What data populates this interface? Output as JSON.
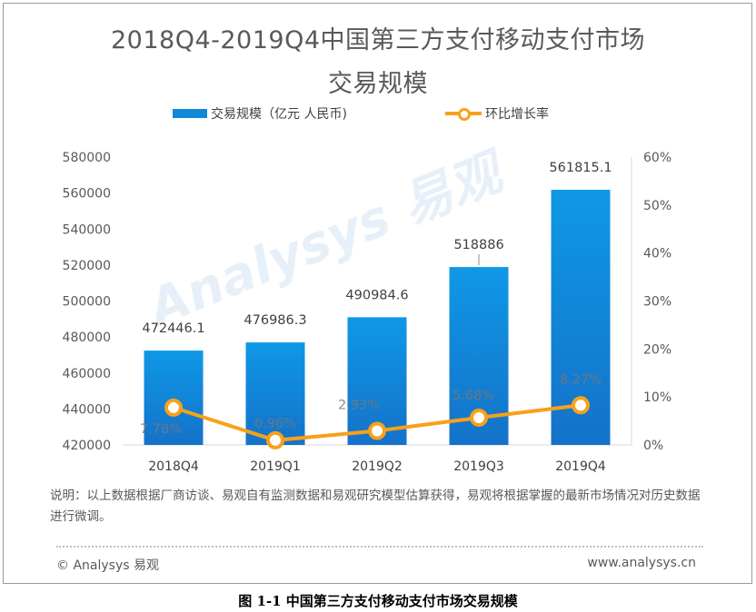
{
  "title_line1": "2018Q4-2019Q4中国第三方支付移动支付市场",
  "title_line2": "交易规模",
  "watermark": "Analysys 易观",
  "note": "说明：以上数据根据厂商访谈、易观自有监测数据和易观研究模型估算获得，易观将根据掌握的最新市场情况对历史数据进行微调。",
  "copyright": "© Analysys 易观",
  "website": "www.analysys.cn",
  "caption": "图 1-1  中国第三方支付移动支付市场交易规模",
  "colors": {
    "bar": "#1188d8",
    "line": "#f7a11a"
  },
  "chart_data": {
    "type": "bar",
    "categories": [
      "2018Q4",
      "2019Q1",
      "2019Q2",
      "2019Q3",
      "2019Q4"
    ],
    "series": [
      {
        "name": "交易规模（亿元 人民币)",
        "type": "bar",
        "axis": "left",
        "values": [
          472446.1,
          476986.3,
          490984.6,
          518886,
          561815.1
        ],
        "labels": [
          "472446.1",
          "476986.3",
          "490984.6",
          "518886",
          "561815.1"
        ]
      },
      {
        "name": "环比增长率",
        "type": "line",
        "axis": "right",
        "values": [
          7.78,
          0.96,
          2.93,
          5.68,
          8.27
        ],
        "labels": [
          "7.78%",
          "0.96%",
          "2.93%",
          "5.68%",
          "8.27%"
        ]
      }
    ],
    "y_left": {
      "ylim": [
        420000,
        580000
      ],
      "ticks": [
        "420000",
        "440000",
        "460000",
        "480000",
        "500000",
        "520000",
        "540000",
        "560000",
        "580000"
      ]
    },
    "y_right": {
      "ylim": [
        0,
        60
      ],
      "ticks": [
        "0%",
        "10%",
        "20%",
        "30%",
        "40%",
        "50%",
        "60%"
      ]
    },
    "legend_position": "top",
    "grid": false
  }
}
